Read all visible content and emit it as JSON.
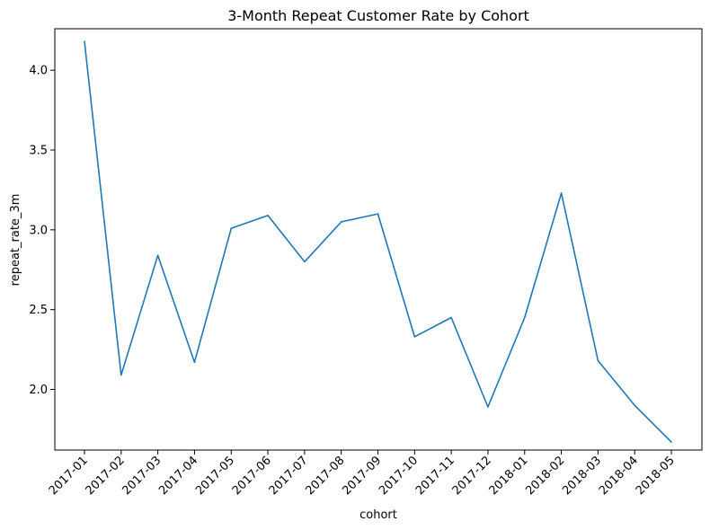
{
  "chart_data": {
    "type": "line",
    "title": "3-Month Repeat Customer Rate by Cohort",
    "xlabel": "cohort",
    "ylabel": "repeat_rate_3m",
    "ylim": [
      1.62,
      4.26
    ],
    "yticks": [
      "2.0",
      "2.5",
      "3.0",
      "3.5",
      "4.0"
    ],
    "ytick_values": [
      2.0,
      2.5,
      3.0,
      3.5,
      4.0
    ],
    "grid": false,
    "line_color": "#1f77b4",
    "categories": [
      "2017-01",
      "2017-02",
      "2017-03",
      "2017-04",
      "2017-05",
      "2017-06",
      "2017-07",
      "2017-08",
      "2017-09",
      "2017-10",
      "2017-11",
      "2017-12",
      "2018-01",
      "2018-02",
      "2018-03",
      "2018-04",
      "2018-05"
    ],
    "series": [
      {
        "values": [
          4.18,
          2.09,
          2.84,
          2.17,
          3.01,
          3.09,
          2.8,
          3.05,
          3.1,
          2.33,
          2.45,
          1.89,
          2.45,
          3.23,
          2.18,
          1.9,
          1.67
        ]
      }
    ]
  }
}
